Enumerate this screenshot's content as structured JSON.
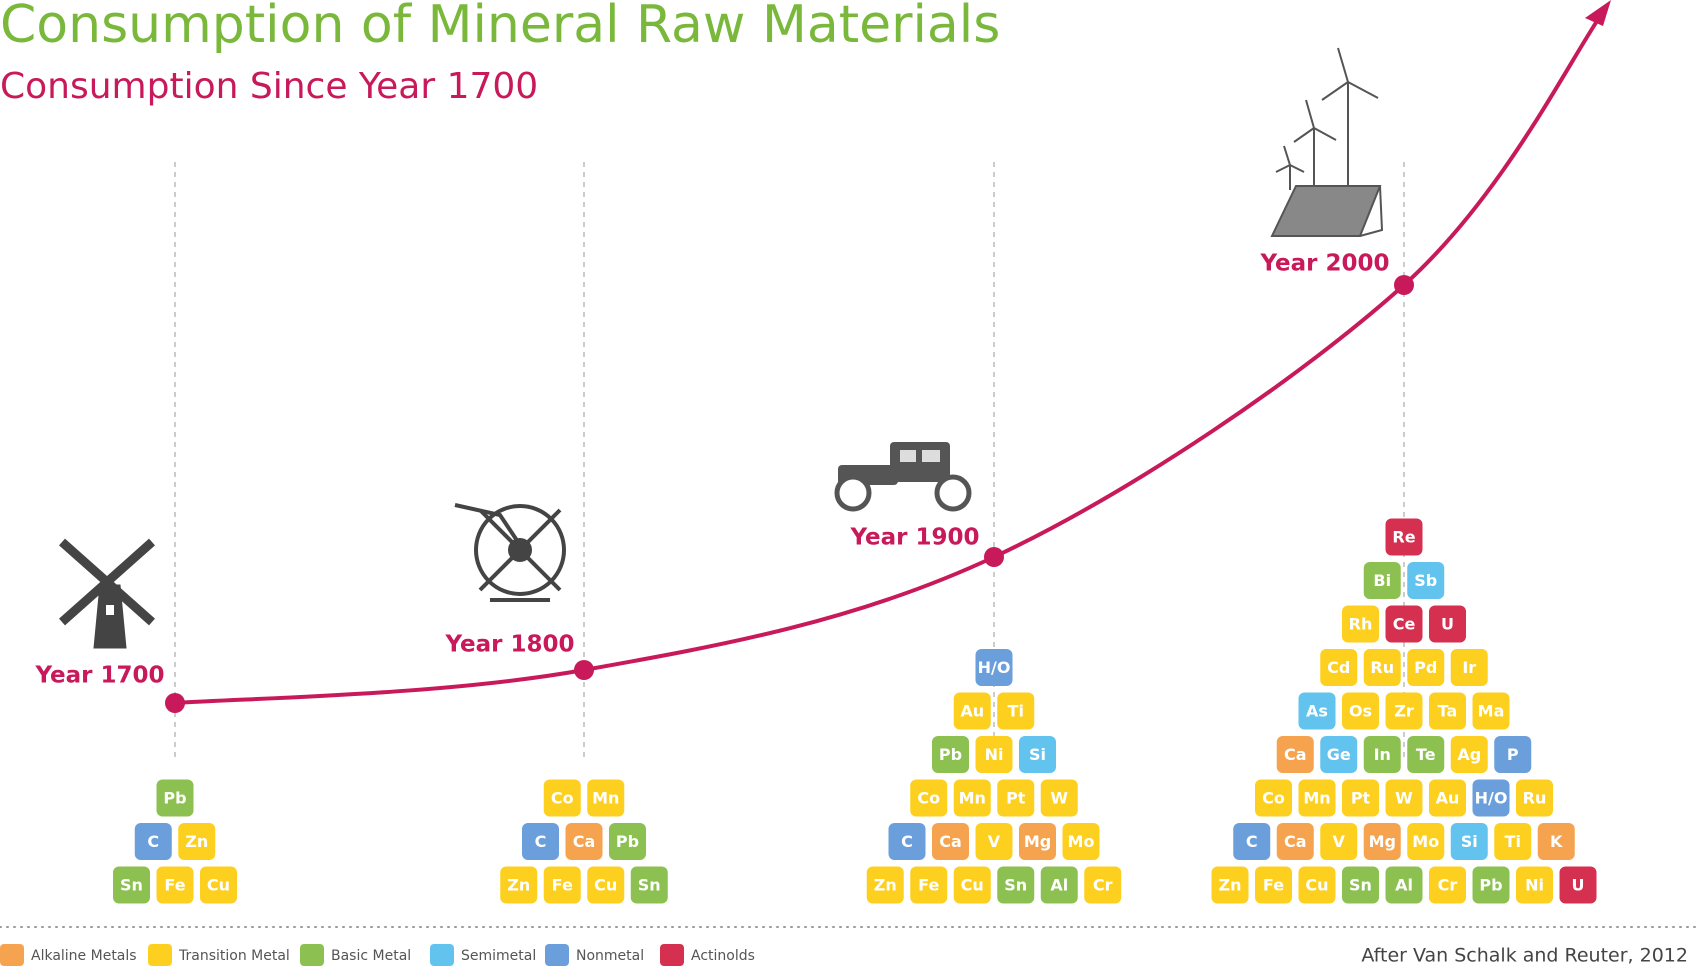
{
  "header": {
    "title": "Consumption of Mineral Raw Materials",
    "subtitle": "Consumption Since Year 1700"
  },
  "groups": [
    {
      "label": "Alkaline Metals",
      "color": "#f5a34e"
    },
    {
      "label": "Transition Metal",
      "color": "#fdd01f"
    },
    {
      "label": "Basic Metal",
      "color": "#8cc152"
    },
    {
      "label": "Semimetal",
      "color": "#62c4ee"
    },
    {
      "label": "Nonmetal",
      "color": "#6a9fdc"
    },
    {
      "label": "Actinolds",
      "color": "#d5304f"
    }
  ],
  "eras": [
    {
      "label": "Year 1700",
      "rows": [
        [
          {
            "symbol": "Pb",
            "group": 2
          }
        ],
        [
          {
            "symbol": "C",
            "group": 4
          },
          {
            "symbol": "Zn",
            "group": 1
          }
        ],
        [
          {
            "symbol": "Sn",
            "group": 2
          },
          {
            "symbol": "Fe",
            "group": 1
          },
          {
            "symbol": "Cu",
            "group": 1
          }
        ]
      ]
    },
    {
      "label": "Year 1800",
      "rows": [
        [
          {
            "symbol": "Co",
            "group": 1
          },
          {
            "symbol": "Mn",
            "group": 1
          }
        ],
        [
          {
            "symbol": "C",
            "group": 4
          },
          {
            "symbol": "Ca",
            "group": 0
          },
          {
            "symbol": "Pb",
            "group": 2
          }
        ],
        [
          {
            "symbol": "Zn",
            "group": 1
          },
          {
            "symbol": "Fe",
            "group": 1
          },
          {
            "symbol": "Cu",
            "group": 1
          },
          {
            "symbol": "Sn",
            "group": 2
          }
        ]
      ]
    },
    {
      "label": "Year 1900",
      "rows": [
        [
          {
            "symbol": "H/O",
            "group": 4
          }
        ],
        [
          {
            "symbol": "Au",
            "group": 1
          },
          {
            "symbol": "Ti",
            "group": 1
          }
        ],
        [
          {
            "symbol": "Pb",
            "group": 2
          },
          {
            "symbol": "Ni",
            "group": 1
          },
          {
            "symbol": "Si",
            "group": 3
          }
        ],
        [
          {
            "symbol": "Co",
            "group": 1
          },
          {
            "symbol": "Mn",
            "group": 1
          },
          {
            "symbol": "Pt",
            "group": 1
          },
          {
            "symbol": "W",
            "group": 1
          }
        ],
        [
          {
            "symbol": "C",
            "group": 4
          },
          {
            "symbol": "Ca",
            "group": 0
          },
          {
            "symbol": "V",
            "group": 1
          },
          {
            "symbol": "Mg",
            "group": 0
          },
          {
            "symbol": "Mo",
            "group": 1
          }
        ],
        [
          {
            "symbol": "Zn",
            "group": 1
          },
          {
            "symbol": "Fe",
            "group": 1
          },
          {
            "symbol": "Cu",
            "group": 1
          },
          {
            "symbol": "Sn",
            "group": 2
          },
          {
            "symbol": "Al",
            "group": 2
          },
          {
            "symbol": "Cr",
            "group": 1
          }
        ]
      ]
    },
    {
      "label": "Year 2000",
      "rows": [
        [
          {
            "symbol": "Re",
            "group": 5
          }
        ],
        [
          {
            "symbol": "Bi",
            "group": 2
          },
          {
            "symbol": "Sb",
            "group": 3
          }
        ],
        [
          {
            "symbol": "Rh",
            "group": 1
          },
          {
            "symbol": "Ce",
            "group": 5
          },
          {
            "symbol": "U",
            "group": 5
          }
        ],
        [
          {
            "symbol": "Cd",
            "group": 1
          },
          {
            "symbol": "Ru",
            "group": 1
          },
          {
            "symbol": "Pd",
            "group": 1
          },
          {
            "symbol": "Ir",
            "group": 1
          }
        ],
        [
          {
            "symbol": "As",
            "group": 3
          },
          {
            "symbol": "Os",
            "group": 1
          },
          {
            "symbol": "Zr",
            "group": 1
          },
          {
            "symbol": "Ta",
            "group": 1
          },
          {
            "symbol": "Ma",
            "group": 1
          }
        ],
        [
          {
            "symbol": "Ca",
            "group": 0
          },
          {
            "symbol": "Ge",
            "group": 3
          },
          {
            "symbol": "In",
            "group": 2
          },
          {
            "symbol": "Te",
            "group": 2
          },
          {
            "symbol": "Ag",
            "group": 1
          },
          {
            "symbol": "P",
            "group": 4
          }
        ],
        [
          {
            "symbol": "Co",
            "group": 1
          },
          {
            "symbol": "Mn",
            "group": 1
          },
          {
            "symbol": "Pt",
            "group": 1
          },
          {
            "symbol": "W",
            "group": 1
          },
          {
            "symbol": "Au",
            "group": 1
          },
          {
            "symbol": "H/O",
            "group": 4
          },
          {
            "symbol": "Ru",
            "group": 1
          }
        ],
        [
          {
            "symbol": "C",
            "group": 4
          },
          {
            "symbol": "Ca",
            "group": 0
          },
          {
            "symbol": "V",
            "group": 1
          },
          {
            "symbol": "Mg",
            "group": 0
          },
          {
            "symbol": "Mo",
            "group": 1
          },
          {
            "symbol": "Si",
            "group": 3
          },
          {
            "symbol": "Ti",
            "group": 1
          },
          {
            "symbol": "K",
            "group": 0
          }
        ],
        [
          {
            "symbol": "Zn",
            "group": 1
          },
          {
            "symbol": "Fe",
            "group": 1
          },
          {
            "symbol": "Cu",
            "group": 1
          },
          {
            "symbol": "Sn",
            "group": 2
          },
          {
            "symbol": "Al",
            "group": 2
          },
          {
            "symbol": "Cr",
            "group": 1
          },
          {
            "symbol": "Pb",
            "group": 2
          },
          {
            "symbol": "Ni",
            "group": 1
          },
          {
            "symbol": "U",
            "group": 5
          }
        ]
      ]
    }
  ],
  "source": "After Van Schalk and Reuter, 2012"
}
